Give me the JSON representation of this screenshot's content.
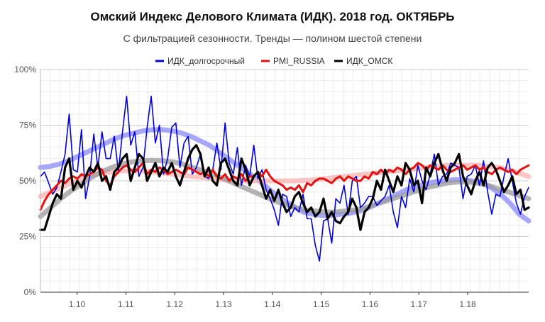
{
  "chart_data": {
    "type": "line",
    "title": "Омский Индекс Делового Климата (ИДК). 2018 год. ОКТЯБРЬ",
    "subtitle": "С фильтрацией сезонности. Тренды — полином шестой степени",
    "xlabel": "",
    "ylabel": "",
    "ylim": [
      0,
      100
    ],
    "xlim": [
      0,
      120
    ],
    "grid": true,
    "legend_position": "top",
    "x_ticks": [
      {
        "x": 9,
        "label": "1.10"
      },
      {
        "x": 21,
        "label": "1.11"
      },
      {
        "x": 33,
        "label": "1.12"
      },
      {
        "x": 45,
        "label": "1.13"
      },
      {
        "x": 57,
        "label": "1.14"
      },
      {
        "x": 69,
        "label": "1.15"
      },
      {
        "x": 81,
        "label": "1.16"
      },
      {
        "x": 93,
        "label": "1.17"
      },
      {
        "x": 105,
        "label": "1.18"
      }
    ],
    "y_ticks": [
      {
        "y": 0,
        "label": "0%"
      },
      {
        "y": 25,
        "label": "25%"
      },
      {
        "y": 50,
        "label": "50%"
      },
      {
        "y": 75,
        "label": "75%"
      },
      {
        "y": 100,
        "label": "100%"
      }
    ],
    "series": [
      {
        "name": "ИДК_долгосрочный",
        "color": "#0000dd",
        "values": [
          52,
          54,
          49,
          44,
          47,
          54,
          62,
          80,
          55,
          54,
          73,
          42,
          52,
          71,
          56,
          72,
          60,
          60,
          70,
          54,
          72,
          88,
          66,
          72,
          52,
          56,
          74,
          88,
          67,
          75,
          53,
          60,
          74,
          76,
          56,
          67,
          70,
          53,
          56,
          62,
          52,
          51,
          55,
          67,
          55,
          76,
          58,
          53,
          65,
          48,
          57,
          52,
          66,
          51,
          55,
          46,
          42,
          37,
          30,
          44,
          43,
          34,
          38,
          36,
          44,
          33,
          33,
          21,
          14,
          32,
          33,
          22,
          42,
          40,
          48,
          35,
          50,
          52,
          38,
          40,
          43,
          43,
          39,
          41,
          43,
          48,
          36,
          29,
          43,
          38,
          51,
          45,
          57,
          50,
          46,
          53,
          62,
          48,
          52,
          53,
          58,
          57,
          56,
          42,
          52,
          53,
          57,
          48,
          59,
          45,
          35,
          44,
          43,
          52,
          60,
          50,
          40,
          35,
          43,
          47
        ]
      },
      {
        "name": "PMI_RUSSIA",
        "color": "#e81010",
        "values": [
          37,
          41,
          44,
          46,
          48,
          50,
          49,
          51,
          52,
          51,
          53,
          52,
          53,
          54,
          56,
          55,
          50,
          48,
          52,
          54,
          56,
          57,
          55,
          54,
          56,
          58,
          53,
          55,
          54,
          56,
          55,
          53,
          54,
          55,
          54,
          53,
          56,
          55,
          54,
          53,
          54,
          52,
          55,
          52,
          51,
          53,
          50,
          52,
          51,
          53,
          50,
          52,
          52,
          54,
          52,
          55,
          52,
          50,
          49,
          48,
          46,
          47,
          46,
          48,
          45,
          49,
          48,
          50,
          51,
          51,
          50,
          49,
          51,
          52,
          50,
          52,
          51,
          50,
          50,
          52,
          51,
          54,
          53,
          55,
          53,
          55,
          54,
          56,
          55,
          53,
          55,
          56,
          58,
          57,
          55,
          57,
          56,
          55,
          57,
          55,
          54,
          55,
          56,
          57,
          55,
          56,
          57,
          55,
          56,
          54,
          53,
          55,
          56,
          55,
          54,
          55,
          53,
          55,
          56,
          57
        ]
      },
      {
        "name": "ИДК_ОМСК",
        "color": "#000000",
        "values": [
          28,
          28,
          34,
          40,
          44,
          42,
          56,
          60,
          46,
          50,
          47,
          52,
          56,
          54,
          58,
          50,
          52,
          46,
          54,
          56,
          60,
          62,
          50,
          56,
          62,
          60,
          50,
          54,
          58,
          52,
          56,
          54,
          58,
          52,
          48,
          54,
          60,
          64,
          66,
          62,
          52,
          56,
          50,
          48,
          58,
          60,
          55,
          50,
          48,
          60,
          55,
          48,
          52,
          54,
          48,
          42,
          46,
          41,
          46,
          40,
          36,
          38,
          43,
          45,
          40,
          36,
          38,
          34,
          36,
          42,
          33,
          36,
          32,
          31,
          34,
          36,
          42,
          38,
          28,
          36,
          38,
          42,
          50,
          46,
          55,
          50,
          45,
          52,
          48,
          58,
          55,
          48,
          50,
          40,
          56,
          52,
          58,
          62,
          55,
          50,
          56,
          58,
          62,
          52,
          48,
          44,
          50,
          54,
          48,
          56,
          58,
          55,
          50,
          45,
          48,
          52,
          44,
          46,
          37,
          38
        ]
      }
    ],
    "trends": [
      {
        "name": "ИДК_долгосрочный",
        "color": "#8a8aff",
        "values": [
          56,
          56.5,
          57.5,
          59,
          61,
          63,
          65,
          67,
          69,
          70.5,
          71.5,
          72.5,
          73,
          73,
          72.5,
          71.5,
          70,
          68,
          66,
          63,
          60,
          57,
          54,
          51,
          47.5,
          44,
          41,
          38.5,
          36,
          35,
          34.5,
          34.5,
          35,
          35.5,
          36.5,
          38,
          40,
          42,
          44,
          46,
          47.5,
          48.5,
          49.5,
          50,
          50.5,
          50.5,
          50,
          49,
          47,
          44,
          40,
          35,
          32
        ]
      },
      {
        "name": "PMI_RUSSIA",
        "color": "#ffb3b3",
        "values": [
          43,
          45,
          47,
          49,
          51,
          52.5,
          53.5,
          54,
          54.5,
          54.5,
          54.5,
          54,
          53.5,
          53,
          52.5,
          52,
          51.5,
          51,
          50.5,
          50.2,
          50,
          50,
          50,
          50,
          50,
          50,
          50.2,
          50.5,
          51,
          51.5,
          52,
          52.5,
          53,
          53.5,
          54,
          54.5,
          55,
          55.5,
          56,
          56.5,
          57,
          57,
          57,
          57,
          56.5,
          56,
          55,
          53.5,
          52
        ]
      },
      {
        "name": "ИДК_ОМСК",
        "color": "#999999",
        "values": [
          34,
          38,
          42,
          45.5,
          48.5,
          51.5,
          54,
          56,
          57.5,
          58.5,
          59,
          59.2,
          59,
          58.5,
          57.5,
          56,
          54.5,
          53,
          51,
          49,
          47,
          45,
          43,
          41,
          39.5,
          38,
          37,
          36.5,
          36,
          36,
          36.5,
          37,
          38,
          39.5,
          41,
          42.5,
          44,
          45.5,
          47,
          48,
          49,
          49.5,
          49.5,
          49,
          48,
          46.5,
          45,
          43.5,
          42
        ]
      }
    ]
  }
}
